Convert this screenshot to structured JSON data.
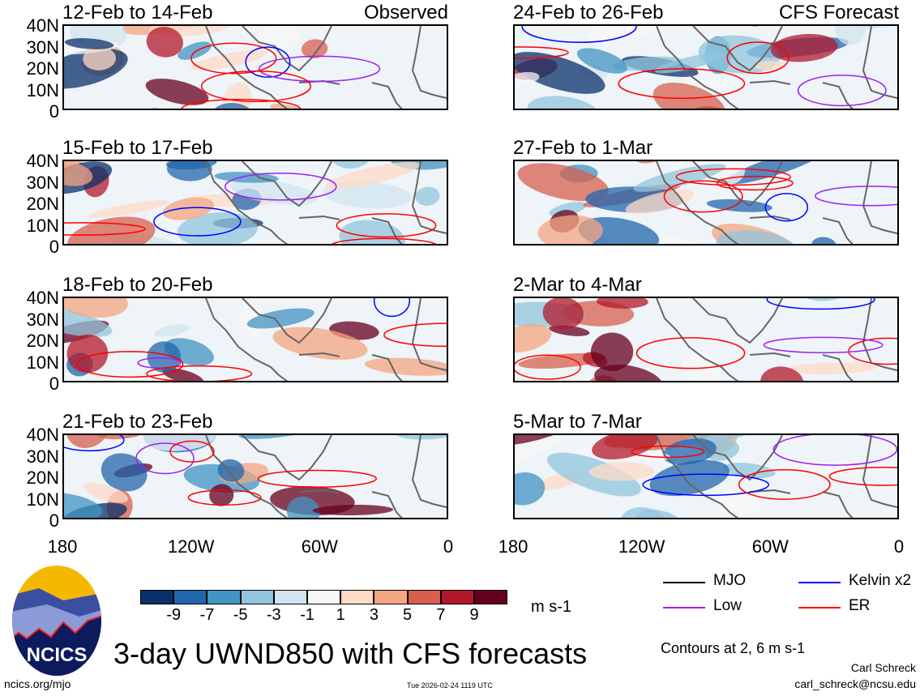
{
  "panels": [
    {
      "title": "12-Feb to 14-Feb",
      "tag": "Observed"
    },
    {
      "title": "24-Feb to 26-Feb",
      "tag": "CFS Forecast"
    },
    {
      "title": "15-Feb to 17-Feb",
      "tag": ""
    },
    {
      "title": "27-Feb to 1-Mar",
      "tag": ""
    },
    {
      "title": "18-Feb to 20-Feb",
      "tag": ""
    },
    {
      "title": "2-Mar to 4-Mar",
      "tag": ""
    },
    {
      "title": "21-Feb to 23-Feb",
      "tag": ""
    },
    {
      "title": "5-Mar to 7-Mar",
      "tag": ""
    }
  ],
  "y_ticks": [
    "40N",
    "30N",
    "20N",
    "10N",
    "0"
  ],
  "x_ticks": [
    "180",
    "120W",
    "60W",
    "0"
  ],
  "colorbar": {
    "labels": [
      "-9",
      "-7",
      "-5",
      "-3",
      "-1",
      "1",
      "3",
      "5",
      "7",
      "9"
    ],
    "colors": [
      "#08306b",
      "#2166ac",
      "#4393c3",
      "#92c5de",
      "#d1e5f0",
      "#f7f7f7",
      "#fddbc7",
      "#f4a582",
      "#d6604d",
      "#b2182b",
      "#67001f"
    ],
    "units": "m s-1"
  },
  "legend": [
    {
      "label": "MJO",
      "color": "#000000"
    },
    {
      "label": "Kelvin x2",
      "color": "#0000ff"
    },
    {
      "label": "Low",
      "color": "#a020f0"
    },
    {
      "label": "ER",
      "color": "#ff0000"
    }
  ],
  "contours_note": "Contours at 2, 6 m s-1",
  "main_title": "3-day UWND850 with CFS forecasts",
  "logo_text": "NCICS",
  "site": "ncics.org/mjo",
  "timestamp": "Tue 2026-02-24 1119 UTC",
  "author": "Carl Schreck",
  "email": "carl_schreck@ncsu.edu"
}
